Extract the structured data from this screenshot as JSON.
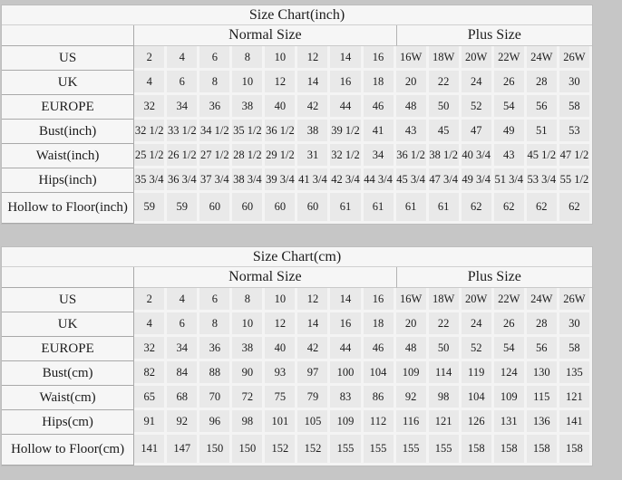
{
  "page_background": "#c6c6c6",
  "colors": {
    "table_background": "#f6f6f6",
    "data_cell_background": "#e9e9e9",
    "grid_line": "#a9a9a9",
    "cell_band": "#f4f4f4",
    "text": "#1c1c1c"
  },
  "tables": [
    {
      "title": "Size Chart(inch)",
      "group_headers": [
        {
          "label": "Normal Size",
          "span": 8
        },
        {
          "label": "Plus Size",
          "span": 6
        }
      ],
      "rows": [
        {
          "label": "US",
          "values": [
            "2",
            "4",
            "6",
            "8",
            "10",
            "12",
            "14",
            "16",
            "16W",
            "18W",
            "20W",
            "22W",
            "24W",
            "26W"
          ]
        },
        {
          "label": "UK",
          "values": [
            "4",
            "6",
            "8",
            "10",
            "12",
            "14",
            "16",
            "18",
            "20",
            "22",
            "24",
            "26",
            "28",
            "30"
          ]
        },
        {
          "label": "EUROPE",
          "values": [
            "32",
            "34",
            "36",
            "38",
            "40",
            "42",
            "44",
            "46",
            "48",
            "50",
            "52",
            "54",
            "56",
            "58"
          ]
        },
        {
          "label": "Bust(inch)",
          "values": [
            "32 1/2",
            "33 1/2",
            "34 1/2",
            "35 1/2",
            "36 1/2",
            "38",
            "39 1/2",
            "41",
            "43",
            "45",
            "47",
            "49",
            "51",
            "53"
          ]
        },
        {
          "label": "Waist(inch)",
          "values": [
            "25 1/2",
            "26 1/2",
            "27 1/2",
            "28 1/2",
            "29 1/2",
            "31",
            "32 1/2",
            "34",
            "36 1/2",
            "38 1/2",
            "40 3/4",
            "43",
            "45 1/2",
            "47 1/2"
          ]
        },
        {
          "label": "Hips(inch)",
          "values": [
            "35 3/4",
            "36 3/4",
            "37 3/4",
            "38 3/4",
            "39 3/4",
            "41 3/4",
            "42 3/4",
            "44 3/4",
            "45 3/4",
            "47 3/4",
            "49 3/4",
            "51 3/4",
            "53 3/4",
            "55 1/2"
          ]
        },
        {
          "label": "Hollow to Floor(inch)",
          "values": [
            "59",
            "59",
            "60",
            "60",
            "60",
            "60",
            "61",
            "61",
            "61",
            "61",
            "62",
            "62",
            "62",
            "62"
          ]
        }
      ]
    },
    {
      "title": "Size Chart(cm)",
      "group_headers": [
        {
          "label": "Normal Size",
          "span": 8
        },
        {
          "label": "Plus Size",
          "span": 6
        }
      ],
      "rows": [
        {
          "label": "US",
          "values": [
            "2",
            "4",
            "6",
            "8",
            "10",
            "12",
            "14",
            "16",
            "16W",
            "18W",
            "20W",
            "22W",
            "24W",
            "26W"
          ]
        },
        {
          "label": "UK",
          "values": [
            "4",
            "6",
            "8",
            "10",
            "12",
            "14",
            "16",
            "18",
            "20",
            "22",
            "24",
            "26",
            "28",
            "30"
          ]
        },
        {
          "label": "EUROPE",
          "values": [
            "32",
            "34",
            "36",
            "38",
            "40",
            "42",
            "44",
            "46",
            "48",
            "50",
            "52",
            "54",
            "56",
            "58"
          ]
        },
        {
          "label": "Bust(cm)",
          "values": [
            "82",
            "84",
            "88",
            "90",
            "93",
            "97",
            "100",
            "104",
            "109",
            "114",
            "119",
            "124",
            "130",
            "135"
          ]
        },
        {
          "label": "Waist(cm)",
          "values": [
            "65",
            "68",
            "70",
            "72",
            "75",
            "79",
            "83",
            "86",
            "92",
            "98",
            "104",
            "109",
            "115",
            "121"
          ]
        },
        {
          "label": "Hips(cm)",
          "values": [
            "91",
            "92",
            "96",
            "98",
            "101",
            "105",
            "109",
            "112",
            "116",
            "121",
            "126",
            "131",
            "136",
            "141"
          ]
        },
        {
          "label": "Hollow to Floor(cm)",
          "values": [
            "141",
            "147",
            "150",
            "150",
            "152",
            "152",
            "155",
            "155",
            "155",
            "155",
            "158",
            "158",
            "158",
            "158"
          ]
        }
      ]
    }
  ]
}
